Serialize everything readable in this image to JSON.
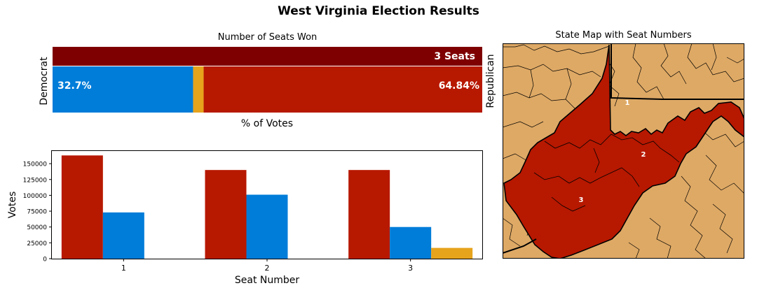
{
  "title": "West Virginia Election Results",
  "colors": {
    "republican": "#b71800",
    "democrat": "#007cd9",
    "other": "#e6a31c",
    "seats_bar": "#7f0000",
    "map_land": "#dea965"
  },
  "chart_data": [
    {
      "type": "bar",
      "orientation": "horizontal-stacked",
      "title": "Number of Seats Won",
      "xlabel": "% of Votes",
      "left_label": "Democrat",
      "right_label": "Republican",
      "seats_label": "3 Seats",
      "seats": {
        "republican": 3,
        "democrat": 0
      },
      "vote_share": {
        "democrat": 32.7,
        "other": 2.46,
        "republican": 64.84
      },
      "democrat_label": "32.7%",
      "republican_label": "64.84%"
    },
    {
      "type": "bar",
      "xlabel": "Seat Number",
      "ylabel": "Votes",
      "categories": [
        "1",
        "2",
        "3"
      ],
      "ylim": [
        0,
        170000
      ],
      "yticks": [
        0,
        25000,
        50000,
        75000,
        100000,
        125000,
        150000
      ],
      "series": [
        {
          "key": "republican",
          "values": [
            163000,
            140000,
            140000
          ]
        },
        {
          "key": "democrat",
          "values": [
            73000,
            101000,
            50000
          ]
        },
        {
          "key": "other",
          "values": [
            0,
            0,
            17000
          ]
        }
      ]
    }
  ],
  "map": {
    "title": "State Map with Seat Numbers",
    "district_labels": [
      "1",
      "2",
      "3"
    ]
  }
}
